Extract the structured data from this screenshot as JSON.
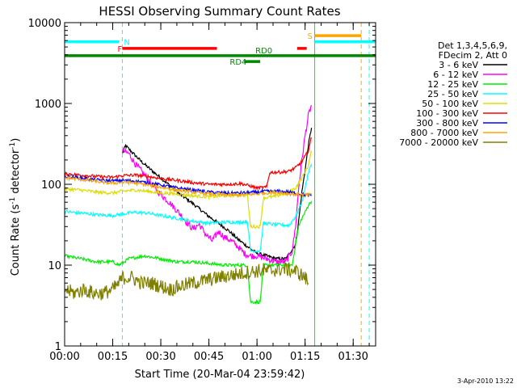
{
  "chart_data": {
    "type": "line",
    "title": "HESSI Observing Summary Count Rates",
    "xlabel": "Start Time (20-Mar-04 23:59:42)",
    "ylabel_main": "Count Rate (s",
    "ylabel_sup1": "-1",
    "ylabel_mid": " detector",
    "ylabel_sup2": "-1",
    "ylabel_end": ")",
    "footer": "3-Apr-2010 13:22",
    "yscale": "log",
    "ylim": [
      1,
      10000
    ],
    "xlim": [
      0,
      97
    ],
    "xticks": [
      {
        "t": 0,
        "label": "00:00"
      },
      {
        "t": 15,
        "label": "00:15"
      },
      {
        "t": 30,
        "label": "00:30"
      },
      {
        "t": 45,
        "label": "00:45"
      },
      {
        "t": 60,
        "label": "01:00"
      },
      {
        "t": 75,
        "label": "01:15"
      },
      {
        "t": 90,
        "label": "01:30"
      }
    ],
    "yticks": [
      {
        "v": 1,
        "label": "1"
      },
      {
        "v": 10,
        "label": "10"
      },
      {
        "v": 100,
        "label": "100"
      },
      {
        "v": 1000,
        "label": "1000"
      },
      {
        "v": 10000,
        "label": "10000"
      }
    ],
    "legend": {
      "placement": "right",
      "header": [
        "Det 1,3,4,5,6,9,",
        "FDecim 2, Att 0"
      ]
    },
    "series": [
      {
        "name": "3 - 6 keV",
        "color": "#000000",
        "points": [
          [
            18,
            240
          ],
          [
            19,
            300
          ],
          [
            21,
            250
          ],
          [
            24,
            190
          ],
          [
            27,
            150
          ],
          [
            30,
            120
          ],
          [
            33,
            95
          ],
          [
            36,
            75
          ],
          [
            39,
            62
          ],
          [
            42,
            50
          ],
          [
            45,
            40
          ],
          [
            48,
            33
          ],
          [
            51,
            27
          ],
          [
            54,
            21
          ],
          [
            57,
            17
          ],
          [
            60,
            14
          ],
          [
            63,
            13
          ],
          [
            66,
            12
          ],
          [
            69,
            12
          ],
          [
            72,
            18
          ],
          [
            73,
            35
          ],
          [
            74,
            80
          ],
          [
            75,
            150
          ],
          [
            76,
            300
          ],
          [
            77,
            500
          ]
        ]
      },
      {
        "name": "6 - 12 keV",
        "color": "#ff00ff",
        "points": [
          [
            18,
            260
          ],
          [
            20,
            240
          ],
          [
            22,
            180
          ],
          [
            25,
            130
          ],
          [
            28,
            90
          ],
          [
            30,
            75
          ],
          [
            33,
            58
          ],
          [
            36,
            43
          ],
          [
            38,
            34
          ],
          [
            40,
            28
          ],
          [
            42,
            32
          ],
          [
            44,
            24
          ],
          [
            46,
            20
          ],
          [
            48,
            26
          ],
          [
            50,
            22
          ],
          [
            52,
            20
          ],
          [
            54,
            17
          ],
          [
            56,
            14
          ],
          [
            58,
            13
          ],
          [
            60,
            13
          ],
          [
            63,
            12
          ],
          [
            66,
            11
          ],
          [
            69,
            11
          ],
          [
            71,
            15
          ],
          [
            72,
            30
          ],
          [
            73,
            90
          ],
          [
            74,
            200
          ],
          [
            75,
            400
          ],
          [
            76,
            700
          ],
          [
            77,
            950
          ]
        ]
      },
      {
        "name": "12 - 25 keV",
        "color": "#00ee00",
        "points": [
          [
            0,
            13
          ],
          [
            5,
            12
          ],
          [
            10,
            11
          ],
          [
            15,
            11
          ],
          [
            17,
            10
          ],
          [
            20,
            12
          ],
          [
            25,
            13
          ],
          [
            30,
            12
          ],
          [
            35,
            11
          ],
          [
            40,
            11
          ],
          [
            45,
            10.5
          ],
          [
            50,
            10
          ],
          [
            55,
            10
          ],
          [
            57,
            10
          ],
          [
            58,
            3.5
          ],
          [
            61,
            3.5
          ],
          [
            62,
            10
          ],
          [
            65,
            10
          ],
          [
            70,
            10
          ],
          [
            71,
            10
          ],
          [
            72,
            18
          ],
          [
            73,
            30
          ],
          [
            74,
            38
          ],
          [
            75,
            45
          ],
          [
            76,
            55
          ],
          [
            77,
            62
          ]
        ]
      },
      {
        "name": "25 - 50 keV",
        "color": "#00ffff",
        "points": [
          [
            0,
            46
          ],
          [
            5,
            44
          ],
          [
            10,
            42
          ],
          [
            15,
            41
          ],
          [
            18,
            43
          ],
          [
            22,
            45
          ],
          [
            26,
            44
          ],
          [
            30,
            41
          ],
          [
            35,
            38
          ],
          [
            40,
            35
          ],
          [
            45,
            33
          ],
          [
            50,
            34
          ],
          [
            55,
            34
          ],
          [
            57,
            35
          ],
          [
            58,
            15
          ],
          [
            61,
            15
          ],
          [
            62,
            33
          ],
          [
            65,
            32
          ],
          [
            70,
            31
          ],
          [
            72,
            40
          ],
          [
            74,
            60
          ],
          [
            75,
            90
          ],
          [
            76,
            140
          ],
          [
            77,
            180
          ]
        ]
      },
      {
        "name": "50 - 100 keV",
        "color": "#dddd00",
        "points": [
          [
            0,
            88
          ],
          [
            5,
            85
          ],
          [
            10,
            80
          ],
          [
            15,
            78
          ],
          [
            18,
            82
          ],
          [
            22,
            85
          ],
          [
            26,
            82
          ],
          [
            30,
            78
          ],
          [
            35,
            76
          ],
          [
            40,
            72
          ],
          [
            45,
            70
          ],
          [
            50,
            72
          ],
          [
            55,
            74
          ],
          [
            57,
            74
          ],
          [
            58,
            30
          ],
          [
            61,
            30
          ],
          [
            62,
            68
          ],
          [
            65,
            70
          ],
          [
            68,
            75
          ],
          [
            70,
            80
          ],
          [
            72,
            90
          ],
          [
            74,
            120
          ],
          [
            76,
            170
          ],
          [
            77,
            260
          ]
        ]
      },
      {
        "name": "100 - 300 keV",
        "color": "#ff0000",
        "points": [
          [
            0,
            135
          ],
          [
            5,
            130
          ],
          [
            10,
            125
          ],
          [
            15,
            122
          ],
          [
            18,
            128
          ],
          [
            22,
            130
          ],
          [
            26,
            125
          ],
          [
            30,
            118
          ],
          [
            35,
            112
          ],
          [
            40,
            105
          ],
          [
            45,
            100
          ],
          [
            50,
            100
          ],
          [
            55,
            102
          ],
          [
            58,
            95
          ],
          [
            60,
            90
          ],
          [
            63,
            92
          ],
          [
            64,
            140
          ],
          [
            68,
            142
          ],
          [
            70,
            145
          ],
          [
            72,
            160
          ],
          [
            74,
            190
          ],
          [
            76,
            260
          ],
          [
            77,
            380
          ]
        ]
      },
      {
        "name": "300 - 800 keV",
        "color": "#0000ff",
        "points": [
          [
            0,
            125
          ],
          [
            5,
            120
          ],
          [
            10,
            113
          ],
          [
            15,
            110
          ],
          [
            18,
            112
          ],
          [
            22,
            110
          ],
          [
            26,
            104
          ],
          [
            30,
            98
          ],
          [
            35,
            90
          ],
          [
            40,
            85
          ],
          [
            45,
            80
          ],
          [
            50,
            78
          ],
          [
            55,
            78
          ],
          [
            60,
            80
          ],
          [
            63,
            82
          ],
          [
            66,
            82
          ],
          [
            70,
            80
          ],
          [
            72,
            78
          ],
          [
            75,
            74
          ],
          [
            77,
            72
          ]
        ]
      },
      {
        "name": "800 - 7000 keV",
        "color": "#ffa500",
        "points": [
          [
            0,
            120
          ],
          [
            5,
            115
          ],
          [
            10,
            108
          ],
          [
            15,
            103
          ],
          [
            18,
            106
          ],
          [
            22,
            104
          ],
          [
            26,
            98
          ],
          [
            30,
            92
          ],
          [
            35,
            85
          ],
          [
            40,
            80
          ],
          [
            45,
            76
          ],
          [
            50,
            74
          ],
          [
            55,
            74
          ],
          [
            60,
            76
          ],
          [
            63,
            78
          ],
          [
            66,
            80
          ],
          [
            70,
            76
          ],
          [
            72,
            75
          ],
          [
            75,
            74
          ],
          [
            77,
            74
          ]
        ]
      },
      {
        "name": "7000 - 20000 keV",
        "color": "#808000",
        "points": [
          [
            0,
            5
          ],
          [
            3,
            4.5
          ],
          [
            6,
            5
          ],
          [
            9,
            4.5
          ],
          [
            12,
            4.5
          ],
          [
            15,
            5
          ],
          [
            17,
            6
          ],
          [
            18,
            7
          ],
          [
            21,
            7
          ],
          [
            24,
            6
          ],
          [
            27,
            6
          ],
          [
            30,
            5.5
          ],
          [
            33,
            5
          ],
          [
            36,
            5.5
          ],
          [
            40,
            6
          ],
          [
            44,
            6.5
          ],
          [
            48,
            7
          ],
          [
            52,
            7.5
          ],
          [
            56,
            8
          ],
          [
            60,
            8.5
          ],
          [
            64,
            8.5
          ],
          [
            68,
            9
          ],
          [
            72,
            8.5
          ],
          [
            75,
            7
          ],
          [
            76,
            6
          ]
        ]
      }
    ],
    "flags": [
      {
        "label": "N",
        "color": "#00ffff",
        "t_start": 0,
        "t_end": 17,
        "y": 5800,
        "label_t": 18.5,
        "label_side": "right"
      },
      {
        "label": "",
        "color": "#00ffff",
        "t_start": 78,
        "t_end": 97,
        "y": 5800,
        "label_t": null,
        "label_side": "none"
      },
      {
        "label": "S",
        "color": "#ffa500",
        "t_start": 78,
        "t_end": 92.5,
        "y": 6900,
        "label_t": 75.7,
        "label_side": "left"
      },
      {
        "label": "F",
        "color": "#ff0000",
        "t_start": 18,
        "t_end": 47.5,
        "y": 4800,
        "label_t": 16.5,
        "label_side": "left"
      },
      {
        "label": "",
        "color": "#ff0000",
        "t_start": 72.5,
        "t_end": 75.5,
        "y": 4800,
        "label_t": null,
        "label_side": "none"
      },
      {
        "label": "RD0",
        "color": "#008800",
        "t_start": 0,
        "t_end": 97,
        "y": 3900,
        "label_t": 59.5,
        "label_side": "above"
      },
      {
        "label": "RD4",
        "color": "#008800",
        "t_start": 56,
        "t_end": 61,
        "y": 3300,
        "label_t": 51.5,
        "label_side": "left"
      }
    ],
    "vlines": [
      {
        "t": 18,
        "color": "#00ffff",
        "style": "dashed"
      },
      {
        "t": 78,
        "color": "#00ee00",
        "style": "solid"
      },
      {
        "t": 92.5,
        "color": "#ffa500",
        "style": "dashed"
      },
      {
        "t": 95,
        "color": "#00ffff",
        "style": "dashed"
      }
    ]
  }
}
